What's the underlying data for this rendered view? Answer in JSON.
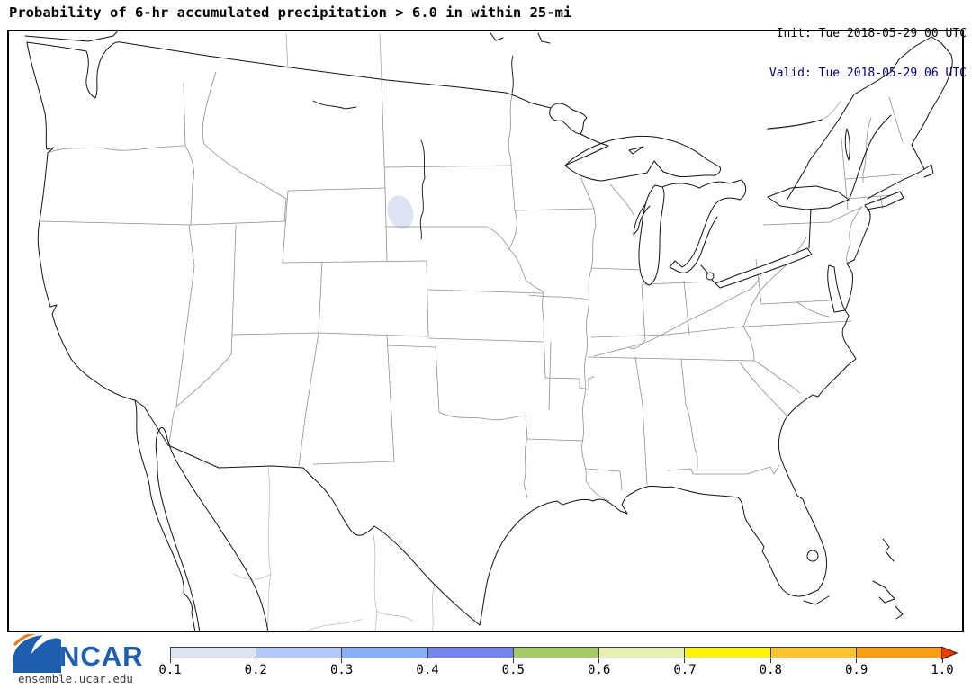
{
  "header": {
    "title": "Probability of 6-hr accumulated precipitation > 6.0 in within 25-mi",
    "init_label": "Init: Tue 2018-05-29 00 UTC",
    "valid_label": "Valid: Tue 2018-05-29 06 UTC",
    "valid_color": "#000080"
  },
  "map": {
    "area": "Contiguous United States with southern Canada and northern Mexico",
    "probability_regions": [
      {
        "level": "0.1",
        "location": "north-central South Dakota",
        "fill": "#dbe4f0"
      }
    ]
  },
  "colorbar": {
    "labels": [
      "0.1",
      "0.2",
      "0.3",
      "0.4",
      "0.5",
      "0.6",
      "0.7",
      "0.8",
      "0.9",
      "1.0"
    ],
    "segment_colors": [
      "#dbe4f0",
      "#b4c8fb",
      "#86aff8",
      "#7285f0",
      "#a3ca64",
      "#e7f0b2",
      "#fdf303",
      "#fcc32d",
      "#fb9d13"
    ],
    "arrow_color": "#f23c00",
    "arrow_outline": "#40200a",
    "outline_color": "#3c3c3c",
    "tick_color": "#333333"
  },
  "footer": {
    "logo_text": "NCAR",
    "logo_url_text": "ensemble.ucar.edu",
    "logo_blue": "#1d5fae",
    "logo_orange": "#e87a22"
  }
}
